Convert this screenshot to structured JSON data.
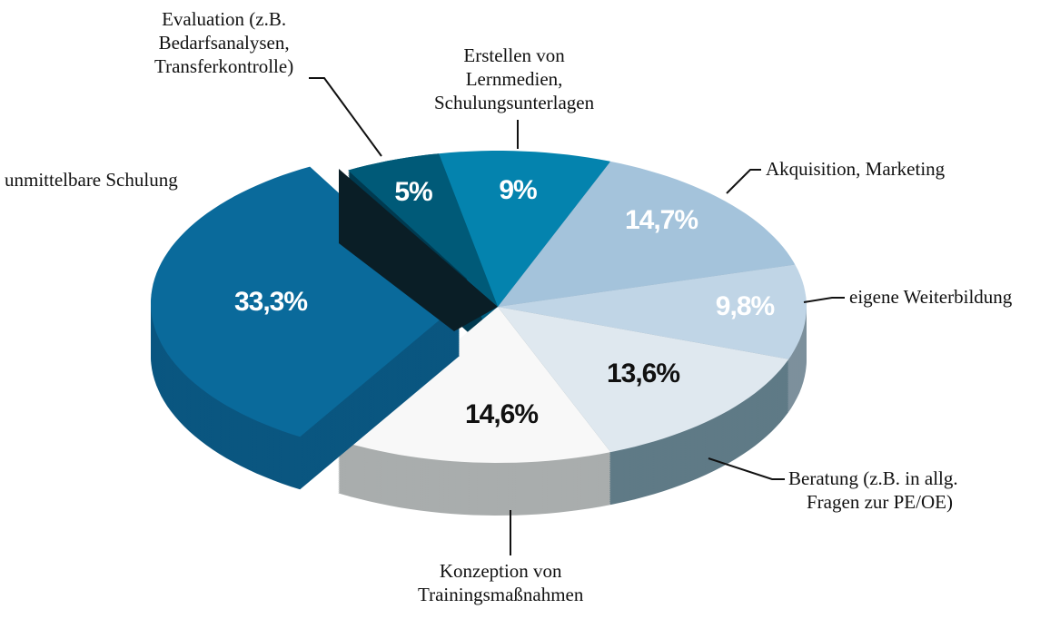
{
  "chart_data": {
    "type": "pie",
    "title": "",
    "slices": [
      {
        "label": "Evaluation (z.B. Bedarfsanalysen, Transferkontrolle)",
        "lines": [
          "Evaluation (z.B.",
          "Bedarfsanalysen,",
          "Transferkontrolle)"
        ],
        "value": 5,
        "display": "5%",
        "color": "#005a78",
        "side": "#003a50",
        "text": "#ffffff"
      },
      {
        "label": "Erstellen von Lernmedien, Schulungsunterlagen",
        "lines": [
          "Erstellen von",
          "Lernmedien,",
          "Schulungsunterlagen"
        ],
        "value": 9,
        "display": "9%",
        "color": "#0483ae",
        "side": "#035f80",
        "text": "#ffffff"
      },
      {
        "label": "Akquisition, Marketing",
        "lines": [
          "Akquisition, Marketing"
        ],
        "value": 14.7,
        "display": "14,7%",
        "color": "#a4c3db",
        "side": "#7c97aa",
        "text": "#ffffff"
      },
      {
        "label": "eigene Weiterbildung",
        "lines": [
          "eigene Weiterbildung"
        ],
        "value": 9.8,
        "display": "9,8%",
        "color": "#c0d5e6",
        "side": "#7d909c",
        "text": "#ffffff"
      },
      {
        "label": "Beratung (z.B. in allg. Fragen zur PE/OE)",
        "lines": [
          "Beratung (z.B. in allg.",
          "Fragen zur PE/OE)"
        ],
        "value": 13.6,
        "display": "13,6%",
        "color": "#dfe8ef",
        "side": "#5f7a86",
        "text": "#111111"
      },
      {
        "label": "Konzeption von Trainingsmaßnahmen",
        "lines": [
          "Konzeption von",
          "Trainingsmaßnahmen"
        ],
        "value": 14.6,
        "display": "14,6%",
        "color": "#f8f8f8",
        "side": "#a9adad",
        "text": "#111111"
      },
      {
        "label": "unmittelbare Schulung",
        "lines": [
          "unmittelbare Schulung"
        ],
        "value": 33.3,
        "display": "33,3%",
        "color": "#0a6a9b",
        "side": "#0a5680",
        "text": "#ffffff",
        "exploded": true
      }
    ]
  }
}
